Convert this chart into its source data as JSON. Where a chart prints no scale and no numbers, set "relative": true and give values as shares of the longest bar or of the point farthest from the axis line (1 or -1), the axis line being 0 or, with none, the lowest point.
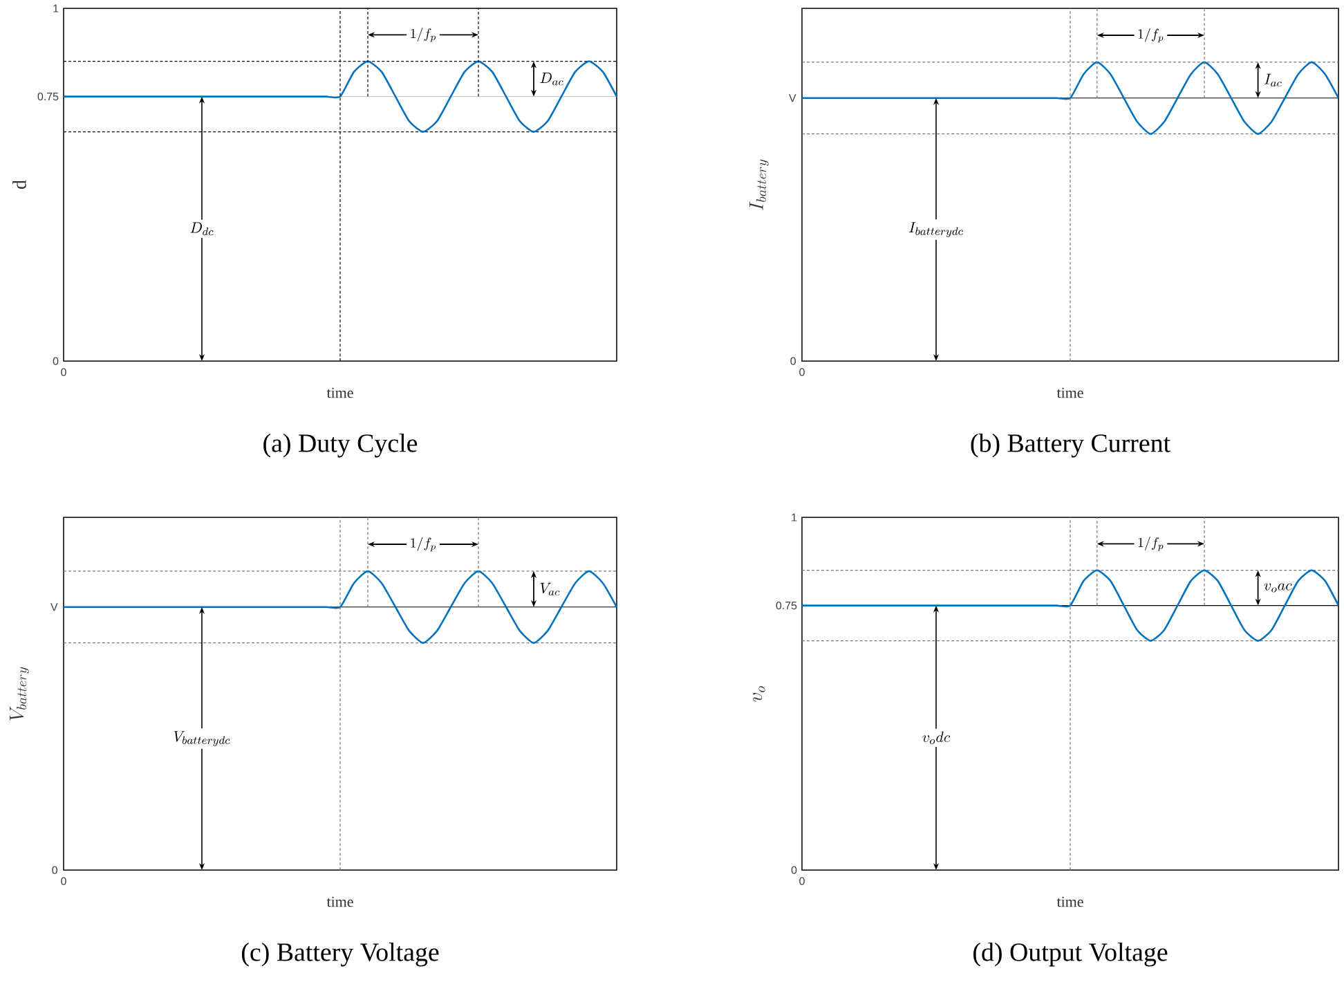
{
  "chart_data": [
    {
      "type": "line",
      "title": "(a) Duty Cycle",
      "xlabel": "time",
      "ylabel": "\\mathrm{d}",
      "color": "#0072bd",
      "ylim": [
        0,
        1
      ],
      "yticks": [
        0,
        0.75,
        1
      ],
      "tick_labels": "y",
      "categories": [
        null,
        null,
        null,
        null,
        null,
        null,
        null,
        null,
        null,
        null,
        null,
        null,
        null,
        null,
        null,
        null,
        null,
        null,
        null,
        null,
        null,
        null,
        null,
        null,
        null,
        null,
        null,
        null,
        null,
        null,
        null,
        null,
        null,
        null,
        null,
        null,
        null,
        null,
        null,
        null,
        null
      ],
      "values": [
        0.75,
        0.75,
        0.75,
        0.75,
        0.75,
        0.75,
        0.75,
        0.75,
        0.75,
        0.75,
        0.75,
        0.75,
        0.75,
        0.75,
        0.75,
        0.75,
        0.75,
        0.75,
        0.75,
        0.75,
        0.75,
        0.82,
        0.85,
        0.82,
        0.75,
        0.68,
        0.65,
        0.68,
        0.75,
        0.82,
        0.85,
        0.82,
        0.75,
        0.68,
        0.65,
        0.68,
        0.75,
        0.82,
        0.85,
        0.82,
        0.75
      ],
      "ref_lines": [
        {
          "axis": "y",
          "value": 0.85,
          "color": "#000000",
          "line_style": "dashed"
        },
        {
          "axis": "y",
          "value": 0.65,
          "color": "#000000",
          "line_style": "dashed"
        },
        {
          "axis": "y",
          "value": 0.75,
          "color": "#d0d0d0",
          "line_style": "solid"
        }
      ],
      "annotations": [
        "0",
        "1/f_p",
        "D_{ac}",
        "D_{dc}"
      ]
    },
    {
      "type": "line",
      "title": "(b) Battery Current",
      "xlabel": "time",
      "ylabel": "I_{battery}",
      "color": "#0072bd",
      "relative": true,
      "tick_labels": false,
      "categories": [
        null,
        null,
        null,
        null,
        null,
        null,
        null,
        null,
        null,
        null,
        null,
        null,
        null,
        null,
        null,
        null,
        null,
        null,
        null,
        null,
        null,
        null,
        null,
        null,
        null,
        null,
        null,
        null,
        null,
        null,
        null,
        null,
        null,
        null,
        null,
        null,
        null,
        null,
        null,
        null,
        null
      ],
      "values": [
        0.88,
        0.88,
        0.88,
        0.88,
        0.88,
        0.88,
        0.88,
        0.88,
        0.88,
        0.88,
        0.88,
        0.88,
        0.88,
        0.88,
        0.88,
        0.88,
        0.88,
        0.88,
        0.88,
        0.88,
        0.88,
        0.96,
        1,
        0.96,
        0.88,
        0.8,
        0.76,
        0.8,
        0.88,
        0.96,
        1,
        0.96,
        0.88,
        0.8,
        0.76,
        0.8,
        0.88,
        0.96,
        1,
        0.96,
        0.88
      ],
      "ref_lines": [
        {
          "axis": "y",
          "value": 1,
          "color": "#777777",
          "line_style": "dashed"
        },
        {
          "axis": "y",
          "value": 0.76,
          "color": "#777777",
          "line_style": "dashed"
        },
        {
          "axis": "y",
          "value": 0.88,
          "color": "#000000",
          "line_style": "solid"
        }
      ],
      "annotations": [
        "0",
        "V",
        "0",
        "1/f_p",
        "I_{ac}",
        "I_{batterydc}"
      ]
    },
    {
      "type": "line",
      "title": "(c) Battery Voltage",
      "xlabel": "time",
      "ylabel": "V_{battery}",
      "color": "#0072bd",
      "relative": true,
      "tick_labels": false,
      "categories": [
        null,
        null,
        null,
        null,
        null,
        null,
        null,
        null,
        null,
        null,
        null,
        null,
        null,
        null,
        null,
        null,
        null,
        null,
        null,
        null,
        null,
        null,
        null,
        null,
        null,
        null,
        null,
        null,
        null,
        null,
        null,
        null,
        null,
        null,
        null,
        null,
        null,
        null,
        null,
        null,
        null
      ],
      "values": [
        0.88,
        0.88,
        0.88,
        0.88,
        0.88,
        0.88,
        0.88,
        0.88,
        0.88,
        0.88,
        0.88,
        0.88,
        0.88,
        0.88,
        0.88,
        0.88,
        0.88,
        0.88,
        0.88,
        0.88,
        0.88,
        0.96,
        1,
        0.96,
        0.88,
        0.8,
        0.76,
        0.8,
        0.88,
        0.96,
        1,
        0.96,
        0.88,
        0.8,
        0.76,
        0.8,
        0.88,
        0.96,
        1,
        0.96,
        0.88
      ],
      "ref_lines": [
        {
          "axis": "y",
          "value": 1,
          "color": "#777777",
          "line_style": "dashed"
        },
        {
          "axis": "y",
          "value": 0.76,
          "color": "#777777",
          "line_style": "dashed"
        },
        {
          "axis": "y",
          "value": 0.88,
          "color": "#000000",
          "line_style": "solid"
        }
      ],
      "annotations": [
        "0",
        "V",
        "0",
        "1/f_p",
        "V_{ac}",
        "V_{batterydc}"
      ]
    },
    {
      "type": "line",
      "title": "(d) Output Voltage",
      "xlabel": "time",
      "ylabel": "v_o",
      "color": "#0072bd",
      "ylim": [
        0,
        1
      ],
      "yticks": [
        0,
        0.75,
        1
      ],
      "tick_labels": "y",
      "categories": [
        null,
        null,
        null,
        null,
        null,
        null,
        null,
        null,
        null,
        null,
        null,
        null,
        null,
        null,
        null,
        null,
        null,
        null,
        null,
        null,
        null,
        null,
        null,
        null,
        null,
        null,
        null,
        null,
        null,
        null,
        null,
        null,
        null,
        null,
        null,
        null,
        null,
        null,
        null,
        null,
        null
      ],
      "values": [
        0.75,
        0.75,
        0.75,
        0.75,
        0.75,
        0.75,
        0.75,
        0.75,
        0.75,
        0.75,
        0.75,
        0.75,
        0.75,
        0.75,
        0.75,
        0.75,
        0.75,
        0.75,
        0.75,
        0.75,
        0.75,
        0.82,
        0.85,
        0.82,
        0.75,
        0.68,
        0.65,
        0.68,
        0.75,
        0.82,
        0.85,
        0.82,
        0.75,
        0.68,
        0.65,
        0.68,
        0.75,
        0.82,
        0.85,
        0.82,
        0.75
      ],
      "ref_lines": [
        {
          "axis": "y",
          "value": 0.85,
          "color": "#777777",
          "line_style": "dashed"
        },
        {
          "axis": "y",
          "value": 0.65,
          "color": "#777777",
          "line_style": "dashed"
        },
        {
          "axis": "y",
          "value": 0.75,
          "color": "#000000",
          "line_style": "solid"
        }
      ],
      "annotations": [
        "0",
        "1/f_p",
        "v_o ac",
        "v_o dc"
      ]
    }
  ]
}
